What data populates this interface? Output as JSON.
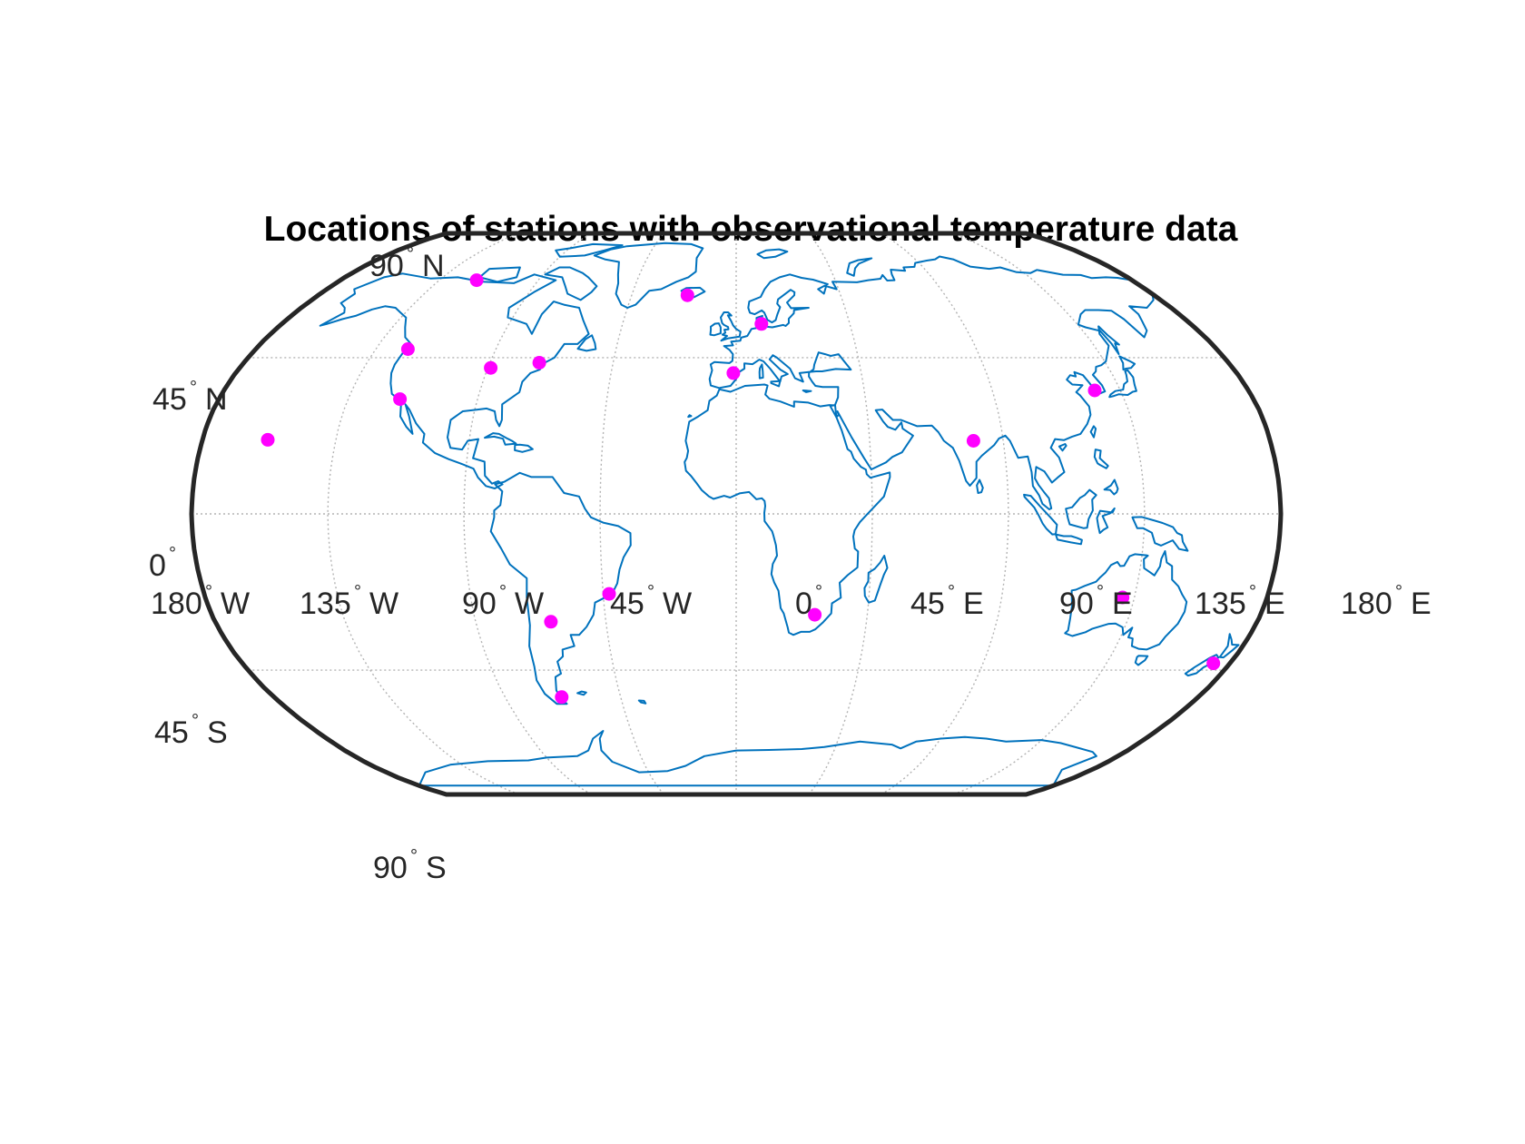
{
  "title": "Locations of stations with observational temperature data",
  "map": {
    "projection": "robinson",
    "frame_color": "#262626",
    "coastline_color": "#0072bd",
    "graticule_color": "#b3b3b3",
    "marker_color": "#ff00ff",
    "lat_labels": [
      {
        "value": 90,
        "num": "90",
        "hemi": "N"
      },
      {
        "value": 45,
        "num": "45",
        "hemi": "N"
      },
      {
        "value": 0,
        "num": "0",
        "hemi": ""
      },
      {
        "value": -45,
        "num": "45",
        "hemi": "S"
      },
      {
        "value": -90,
        "num": "90",
        "hemi": "S"
      }
    ],
    "lon_labels": [
      {
        "value": -180,
        "num": "180",
        "hemi": "W"
      },
      {
        "value": -135,
        "num": "135",
        "hemi": "W"
      },
      {
        "value": -90,
        "num": "90",
        "hemi": "W"
      },
      {
        "value": -45,
        "num": "45",
        "hemi": "W"
      },
      {
        "value": 0,
        "num": "0",
        "hemi": ""
      },
      {
        "value": 45,
        "num": "45",
        "hemi": "E"
      },
      {
        "value": 90,
        "num": "90",
        "hemi": "E"
      },
      {
        "value": 135,
        "num": "135",
        "hemi": "E"
      },
      {
        "value": 180,
        "num": "180",
        "hemi": "E"
      }
    ],
    "stations": [
      {
        "lon": -158,
        "lat": 21.3
      },
      {
        "lon": -118,
        "lat": 69
      },
      {
        "lon": -123,
        "lat": 47.5
      },
      {
        "lon": -117,
        "lat": 33
      },
      {
        "lon": -89,
        "lat": 42
      },
      {
        "lon": -72,
        "lat": 43.5
      },
      {
        "lon": -21,
        "lat": 64
      },
      {
        "lon": 10,
        "lat": 55
      },
      {
        "lon": -1,
        "lat": 40.5
      },
      {
        "lon": 126,
        "lat": 35.5
      },
      {
        "lon": 80,
        "lat": 21
      },
      {
        "lon": 27,
        "lat": -29
      },
      {
        "lon": -43,
        "lat": -23
      },
      {
        "lon": -64,
        "lat": -31
      },
      {
        "lon": -68,
        "lat": -53
      },
      {
        "lon": 131,
        "lat": -24
      },
      {
        "lon": 174,
        "lat": -43
      }
    ]
  }
}
